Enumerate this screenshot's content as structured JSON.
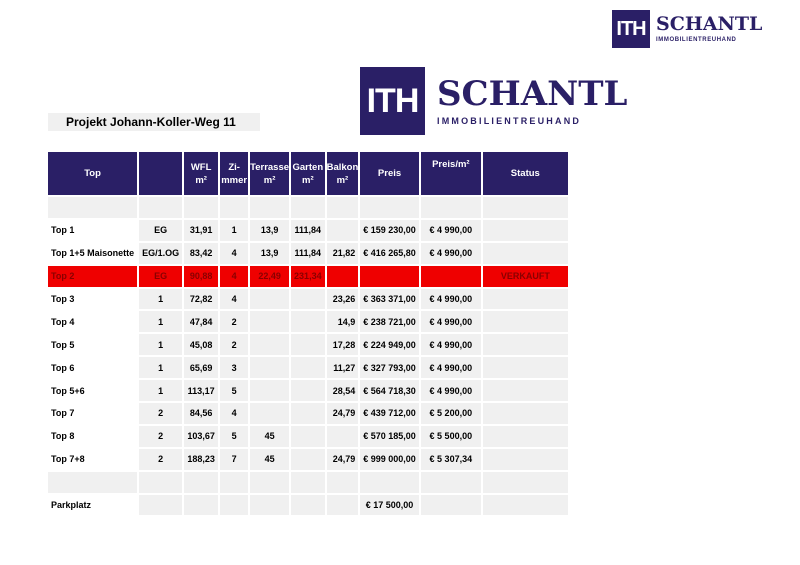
{
  "logo": {
    "mark": "ITH",
    "name": "SCHANTL",
    "tagline": "IMMOBILIENTREUHAND",
    "color": "#2a1f66"
  },
  "title": "Projekt Johann-Koller-Weg 11",
  "colors": {
    "header": "#2a1f66",
    "sold_row": "#ef0000",
    "cell": "#f0f0f0"
  },
  "table": {
    "headers": [
      [
        "Top",
        ""
      ],
      [
        "",
        ""
      ],
      [
        "WFL",
        "m²"
      ],
      [
        "Zi-",
        "mmer"
      ],
      [
        "Terrasse",
        "m²"
      ],
      [
        "Garten",
        "m²"
      ],
      [
        "Balkon",
        "m²"
      ],
      [
        "Preis",
        ""
      ],
      [
        "Preis/m²",
        ""
      ],
      [
        "Status",
        ""
      ]
    ],
    "rows": [
      [
        "",
        "",
        "",
        "",
        "",
        "",
        "",
        "",
        "",
        ""
      ],
      [
        "Top 1",
        "EG",
        "31,91",
        "1",
        "13,9",
        "111,84",
        "",
        "€ 159 230,00",
        "€ 4 990,00",
        ""
      ],
      [
        "Top 1+5 Maisonette",
        "EG/1.OG",
        "83,42",
        "4",
        "13,9",
        "111,84",
        "21,82",
        "€ 416 265,80",
        "€ 4 990,00",
        ""
      ],
      [
        "Top 2",
        "EG",
        "90,88",
        "4",
        "22,49",
        "231,34",
        "",
        "",
        "",
        "VERKAUFT"
      ],
      [
        "Top 3",
        "1",
        "72,82",
        "4",
        "",
        "",
        "23,26",
        "€ 363 371,00",
        "€ 4 990,00",
        ""
      ],
      [
        "Top 4",
        "1",
        "47,84",
        "2",
        "",
        "",
        "14,9",
        "€ 238 721,00",
        "€ 4 990,00",
        ""
      ],
      [
        "Top 5",
        "1",
        "45,08",
        "2",
        "",
        "",
        "17,28",
        "€ 224 949,00",
        "€ 4 990,00",
        ""
      ],
      [
        "Top 6",
        "1",
        "65,69",
        "3",
        "",
        "",
        "11,27",
        "€ 327 793,00",
        "€ 4 990,00",
        ""
      ],
      [
        "Top 5+6",
        "1",
        "113,17",
        "5",
        "",
        "",
        "28,54",
        "€ 564 718,30",
        "€ 4 990,00",
        ""
      ],
      [
        "Top 7",
        "2",
        "84,56",
        "4",
        "",
        "",
        "24,79",
        "€ 439 712,00",
        "€ 5 200,00",
        ""
      ],
      [
        "Top 8",
        "2",
        "103,67",
        "5",
        "45",
        "",
        "",
        "€ 570 185,00",
        "€ 5 500,00",
        ""
      ],
      [
        "Top 7+8",
        "2",
        "188,23",
        "7",
        "45",
        "",
        "24,79",
        "€ 999 000,00",
        "€ 5 307,34",
        ""
      ],
      [
        "",
        "",
        "",
        "",
        "",
        "",
        "",
        "",
        "",
        ""
      ],
      [
        "Parkplatz",
        "",
        "",
        "",
        "",
        "",
        "",
        "€ 17 500,00",
        "",
        ""
      ]
    ]
  }
}
